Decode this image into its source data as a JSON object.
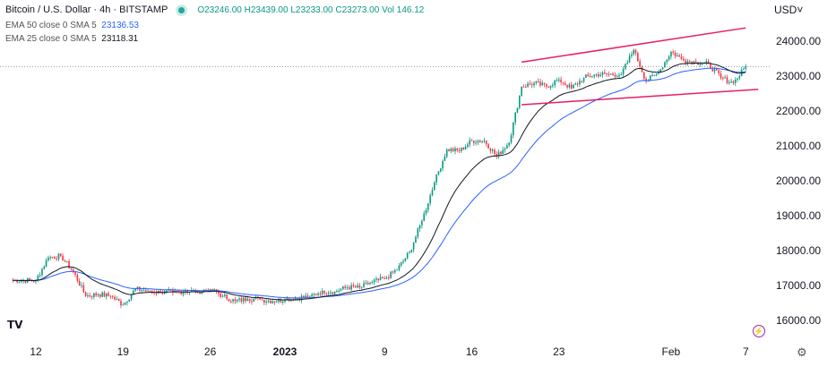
{
  "header": {
    "symbol": "Bitcoin / U.S. Dollar · 4h · BITSTAMP",
    "ohlc": "O23246.00 H23439.00 L23233.00 C23273.00 Vol 146.12",
    "ema50_label": "EMA 50 close 0 SMA 5",
    "ema50_value": "23136.53",
    "ema25_label": "EMA 25 close 0 SMA 5",
    "ema25_value": "23118.31"
  },
  "currency": "USD",
  "logo": "TV",
  "icons": {
    "currency-dropdown": "chevron-down-icon",
    "alerts": "lightning-icon",
    "settings": "gear-icon"
  },
  "colors": {
    "up": "#089981",
    "down": "#f23645",
    "ema50": "#2962ff",
    "ema25": "#131722",
    "trendline": "#e91e63"
  },
  "chart_data": {
    "type": "candlestick",
    "ylim": [
      15800,
      24500
    ],
    "y_ticks": [
      "24000.00",
      "23000.00",
      "22000.00",
      "21000.00",
      "20000.00",
      "19000.00",
      "18000.00",
      "17000.00",
      "16000.00"
    ],
    "x_ticks": [
      {
        "label": "12",
        "date": "2022-12-12"
      },
      {
        "label": "19",
        "date": "2022-12-19"
      },
      {
        "label": "26",
        "date": "2022-12-26"
      },
      {
        "label": "2023",
        "date": "2023-01-01"
      },
      {
        "label": "9",
        "date": "2023-01-09"
      },
      {
        "label": "16",
        "date": "2023-01-16"
      },
      {
        "label": "23",
        "date": "2023-01-23"
      },
      {
        "label": "Feb",
        "date": "2023-02-01"
      },
      {
        "label": "7",
        "date": "2023-02-07"
      }
    ],
    "start_date": "2022-12-10",
    "closes": [
      17150,
      17150,
      17150,
      17800,
      17850,
      17400,
      16700,
      16750,
      16700,
      16450,
      16900,
      16850,
      16800,
      16800,
      16840,
      16830,
      16900,
      16700,
      16550,
      16620,
      16600,
      16550,
      16600,
      16650,
      16680,
      16850,
      16830,
      16950,
      16940,
      17100,
      17200,
      17450,
      17950,
      18850,
      19950,
      20900,
      20850,
      21150,
      21150,
      20700,
      21100,
      22700,
      22800,
      22700,
      22900,
      22650,
      22950,
      23050,
      23050,
      23050,
      23750,
      22850,
      23100,
      23700,
      23450,
      23400,
      23350,
      22950,
      22800,
      23273
    ],
    "last_price": 23273,
    "trendlines": [
      {
        "name": "upper",
        "from": {
          "date": "2023-01-20",
          "price": 23400
        },
        "to": {
          "date": "2023-02-07",
          "price": 24380
        }
      },
      {
        "name": "lower",
        "from": {
          "date": "2023-01-20",
          "price": 22180
        },
        "to": {
          "date": "2023-02-08",
          "price": 22620
        }
      }
    ],
    "series": [
      {
        "name": "EMA 50",
        "period": 50
      },
      {
        "name": "EMA 25",
        "period": 25
      }
    ],
    "grid": false
  }
}
